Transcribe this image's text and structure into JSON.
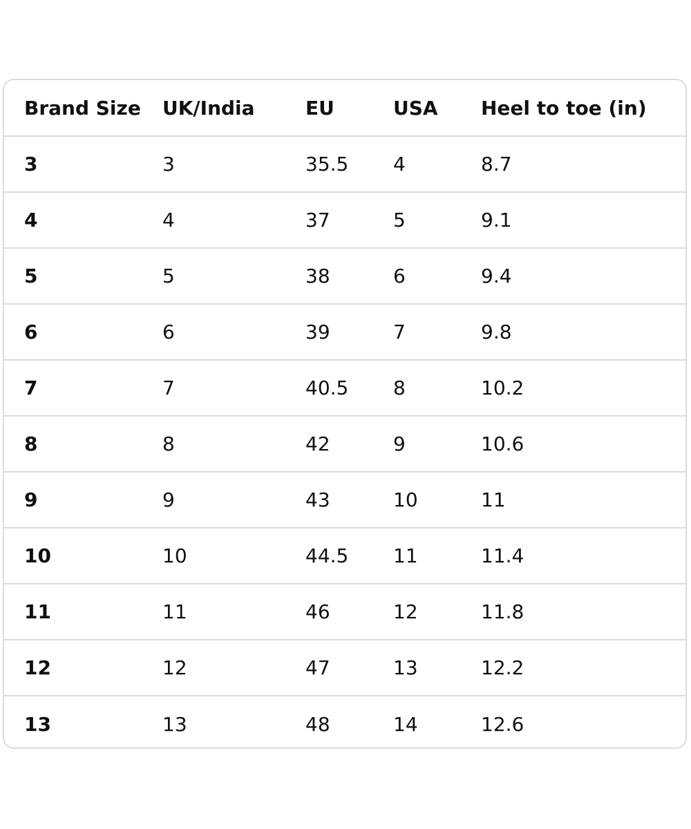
{
  "table": {
    "headers": [
      "Brand Size",
      "UK/India",
      "EU",
      "USA",
      "Heel to toe (in)"
    ],
    "rows": [
      [
        "3",
        "3",
        "35.5",
        "4",
        "8.7"
      ],
      [
        "4",
        "4",
        "37",
        "5",
        "9.1"
      ],
      [
        "5",
        "5",
        "38",
        "6",
        "9.4"
      ],
      [
        "6",
        "6",
        "39",
        "7",
        "9.8"
      ],
      [
        "7",
        "7",
        "40.5",
        "8",
        "10.2"
      ],
      [
        "8",
        "8",
        "42",
        "9",
        "10.6"
      ],
      [
        "9",
        "9",
        "43",
        "10",
        "11"
      ],
      [
        "10",
        "10",
        "44.5",
        "11",
        "11.4"
      ],
      [
        "11",
        "11",
        "46",
        "12",
        "11.8"
      ],
      [
        "12",
        "12",
        "47",
        "13",
        "12.2"
      ],
      [
        "13",
        "13",
        "48",
        "14",
        "12.6"
      ]
    ]
  }
}
